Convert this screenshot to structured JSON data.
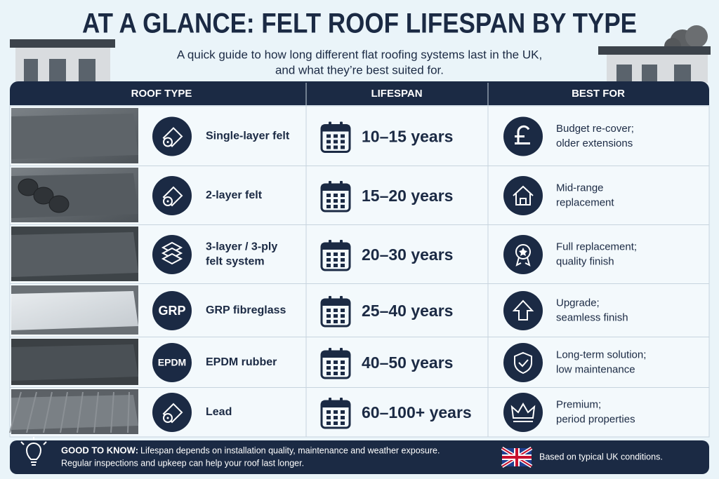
{
  "header": {
    "title": "AT A GLANCE: FELT ROOF LIFESPAN BY TYPE",
    "subtitle": [
      "A quick guide to how long different flat roofing systems last in the UK,",
      "and what they’re best suited for."
    ]
  },
  "table": {
    "columns": [
      "ROOF TYPE",
      "LIFESPAN",
      "BEST FOR"
    ],
    "rows": [
      {
        "type": [
          "Single-layer felt"
        ],
        "lifespan": "10–15 years",
        "best_for": [
          "Budget re-cover;",
          "older extensions"
        ]
      },
      {
        "type": [
          "2-layer felt"
        ],
        "lifespan": "15–20 years",
        "best_for": [
          "Mid-range",
          "replacement"
        ]
      },
      {
        "type": [
          "3-layer / 3-ply",
          "felt system"
        ],
        "lifespan": "20–30 years",
        "best_for": [
          "Full replacement;",
          "quality finish"
        ]
      },
      {
        "type": [
          "GRP fibreglass"
        ],
        "icon_label": "GRP",
        "lifespan": "25–40 years",
        "best_for": [
          "Upgrade;",
          "seamless finish"
        ]
      },
      {
        "type": [
          "EPDM rubber"
        ],
        "icon_label": "EPDM",
        "lifespan": "40–50 years",
        "best_for": [
          "Long-term solution;",
          "low maintenance"
        ]
      },
      {
        "type": [
          "Lead"
        ],
        "lifespan": "60–100+ years",
        "best_for": [
          "Premium;",
          "period properties"
        ]
      }
    ]
  },
  "footer": {
    "heading": "GOOD TO KNOW:",
    "text": [
      "Lifespan depends on installation quality, maintenance and weather exposure.",
      "Regular inspections and upkeep can help your roof last longer."
    ],
    "note": "Based on typical UK conditions."
  }
}
